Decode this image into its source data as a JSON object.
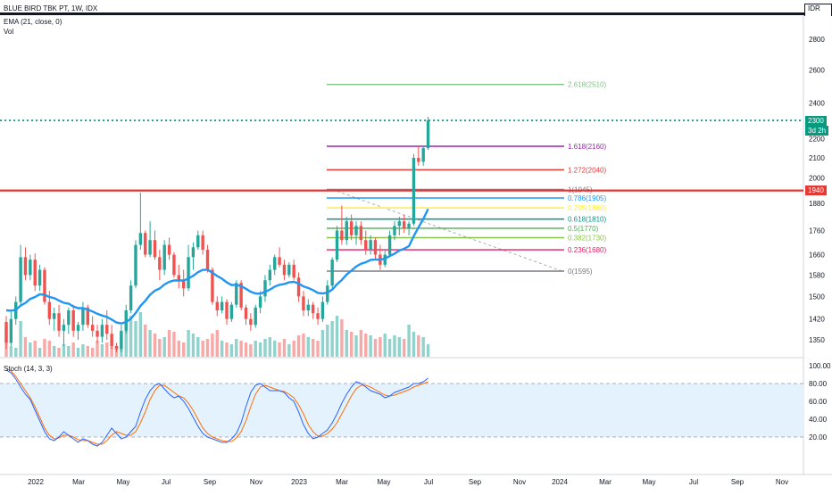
{
  "header": {
    "symbol_title": "BLUE BIRD TBK PT, 1W, IDX",
    "ema_label": "EMA (21, close, 0)",
    "vol_label": "Vol",
    "stoch_label": "Stoch (14, 3, 3)",
    "currency": "IDR"
  },
  "price_tags": {
    "last": "2300",
    "countdown": "3d 2h",
    "level": "1940"
  },
  "colors": {
    "up": "#26a69a",
    "down": "#ef5350",
    "ema": "#2196f3",
    "resistance": "#e53935",
    "last_price": "#089981",
    "stoch_k": "#2962ff",
    "stoch_d": "#ff6d00",
    "stoch_band": "#e3f2fd"
  },
  "chart_data": {
    "type": "candlestick",
    "price_axis": {
      "ticks": [
        "2800",
        "2600",
        "2400",
        "2300",
        "2200",
        "2100",
        "2000",
        "1880",
        "1760",
        "1660",
        "1580",
        "1500",
        "1420",
        "1350"
      ]
    },
    "stoch_axis": {
      "ticks": [
        "100.00",
        "80.00",
        "60.00",
        "40.00",
        "20.00"
      ],
      "upper_band": 80,
      "lower_band": 20
    },
    "time_axis": {
      "labels": [
        "2022",
        "Mar",
        "May",
        "Jul",
        "Sep",
        "Nov",
        "2023",
        "Mar",
        "May",
        "Jul",
        "Sep",
        "Nov",
        "2024",
        "Mar",
        "May",
        "Jul",
        "Sep",
        "Nov"
      ]
    },
    "fib_levels": [
      {
        "label": "2.618(2510)",
        "value": 2510,
        "color": "#81c784"
      },
      {
        "label": "1.618(2160)",
        "value": 2160,
        "color": "#9c27b0"
      },
      {
        "label": "1.272(2040)",
        "value": 2040,
        "color": "#e53935"
      },
      {
        "label": "1(1945)",
        "value": 1945,
        "color": "#787b86"
      },
      {
        "label": "0.786(1905)",
        "value": 1905,
        "color": "#2196f3"
      },
      {
        "label": "0.705(1860)",
        "value": 1860,
        "color": "#ffeb3b"
      },
      {
        "label": "0.618(1810)",
        "value": 1810,
        "color": "#009688"
      },
      {
        "label": "0.5(1770)",
        "value": 1770,
        "color": "#4caf50"
      },
      {
        "label": "0.382(1730)",
        "value": 1730,
        "color": "#8bc34a"
      },
      {
        "label": "0.236(1680)",
        "value": 1680,
        "color": "#e91e63"
      },
      {
        "label": "0(1595)",
        "value": 1595,
        "color": "#787b86"
      }
    ],
    "horizontal_lines": [
      {
        "value": 1940,
        "style": "solid",
        "color": "#e53935"
      },
      {
        "value": 2300,
        "style": "dotted",
        "color": "#089981"
      }
    ],
    "candles": [
      [
        1410,
        1430,
        1320,
        1340
      ],
      [
        1340,
        1445,
        1330,
        1420
      ],
      [
        1420,
        1500,
        1400,
        1480
      ],
      [
        1480,
        1700,
        1470,
        1650
      ],
      [
        1650,
        1690,
        1560,
        1580
      ],
      [
        1580,
        1660,
        1560,
        1640
      ],
      [
        1640,
        1665,
        1520,
        1540
      ],
      [
        1540,
        1620,
        1520,
        1600
      ],
      [
        1600,
        1610,
        1470,
        1480
      ],
      [
        1480,
        1520,
        1400,
        1420
      ],
      [
        1420,
        1460,
        1380,
        1440
      ],
      [
        1440,
        1470,
        1360,
        1380
      ],
      [
        1380,
        1420,
        1330,
        1400
      ],
      [
        1400,
        1460,
        1370,
        1450
      ],
      [
        1450,
        1470,
        1360,
        1380
      ],
      [
        1380,
        1410,
        1350,
        1400
      ],
      [
        1400,
        1480,
        1380,
        1460
      ],
      [
        1460,
        1470,
        1390,
        1400
      ],
      [
        1400,
        1430,
        1360,
        1380
      ],
      [
        1380,
        1400,
        1340,
        1360
      ],
      [
        1360,
        1420,
        1340,
        1400
      ],
      [
        1400,
        1450,
        1350,
        1370
      ],
      [
        1370,
        1400,
        1320,
        1330
      ],
      [
        1330,
        1340,
        1310,
        1320
      ],
      [
        1320,
        1400,
        1310,
        1380
      ],
      [
        1380,
        1470,
        1370,
        1450
      ],
      [
        1450,
        1560,
        1440,
        1540
      ],
      [
        1540,
        1720,
        1530,
        1700
      ],
      [
        1700,
        1930,
        1680,
        1750
      ],
      [
        1750,
        1760,
        1650,
        1660
      ],
      [
        1660,
        1800,
        1650,
        1720
      ],
      [
        1720,
        1760,
        1640,
        1650
      ],
      [
        1650,
        1680,
        1560,
        1600
      ],
      [
        1600,
        1720,
        1580,
        1700
      ],
      [
        1700,
        1730,
        1640,
        1660
      ],
      [
        1660,
        1670,
        1570,
        1580
      ],
      [
        1580,
        1620,
        1530,
        1560
      ],
      [
        1560,
        1600,
        1500,
        1530
      ],
      [
        1530,
        1700,
        1520,
        1650
      ],
      [
        1650,
        1710,
        1600,
        1690
      ],
      [
        1690,
        1760,
        1680,
        1740
      ],
      [
        1740,
        1760,
        1660,
        1680
      ],
      [
        1680,
        1700,
        1590,
        1600
      ],
      [
        1600,
        1610,
        1470,
        1480
      ],
      [
        1480,
        1500,
        1430,
        1450
      ],
      [
        1450,
        1500,
        1440,
        1480
      ],
      [
        1480,
        1490,
        1400,
        1420
      ],
      [
        1420,
        1480,
        1410,
        1470
      ],
      [
        1470,
        1560,
        1460,
        1550
      ],
      [
        1550,
        1560,
        1450,
        1460
      ],
      [
        1460,
        1470,
        1400,
        1420
      ],
      [
        1420,
        1440,
        1380,
        1400
      ],
      [
        1400,
        1470,
        1390,
        1460
      ],
      [
        1460,
        1520,
        1440,
        1500
      ],
      [
        1500,
        1580,
        1480,
        1560
      ],
      [
        1560,
        1620,
        1540,
        1600
      ],
      [
        1600,
        1660,
        1580,
        1650
      ],
      [
        1650,
        1690,
        1610,
        1620
      ],
      [
        1620,
        1640,
        1560,
        1580
      ],
      [
        1580,
        1630,
        1570,
        1620
      ],
      [
        1620,
        1640,
        1560,
        1570
      ],
      [
        1570,
        1590,
        1480,
        1500
      ],
      [
        1500,
        1520,
        1430,
        1450
      ],
      [
        1450,
        1490,
        1430,
        1470
      ],
      [
        1470,
        1480,
        1420,
        1440
      ],
      [
        1440,
        1460,
        1400,
        1420
      ],
      [
        1420,
        1500,
        1410,
        1480
      ],
      [
        1480,
        1560,
        1470,
        1540
      ],
      [
        1540,
        1650,
        1530,
        1640
      ],
      [
        1640,
        1780,
        1630,
        1760
      ],
      [
        1760,
        1870,
        1700,
        1720
      ],
      [
        1720,
        1820,
        1700,
        1800
      ],
      [
        1800,
        1830,
        1720,
        1740
      ],
      [
        1740,
        1800,
        1700,
        1780
      ],
      [
        1780,
        1800,
        1700,
        1720
      ],
      [
        1720,
        1760,
        1660,
        1680
      ],
      [
        1680,
        1740,
        1660,
        1720
      ],
      [
        1720,
        1730,
        1640,
        1660
      ],
      [
        1660,
        1700,
        1600,
        1620
      ],
      [
        1620,
        1680,
        1610,
        1660
      ],
      [
        1660,
        1760,
        1650,
        1740
      ],
      [
        1740,
        1800,
        1720,
        1780
      ],
      [
        1780,
        1820,
        1740,
        1800
      ],
      [
        1800,
        1830,
        1750,
        1770
      ],
      [
        1770,
        1800,
        1740,
        1790
      ],
      [
        1790,
        2120,
        1780,
        2100
      ],
      [
        2100,
        2160,
        2060,
        2080
      ],
      [
        2080,
        2160,
        2060,
        2150
      ],
      [
        2150,
        2320,
        2140,
        2300
      ]
    ],
    "ema": [
      1450,
      1449,
      1452,
      1467,
      1477,
      1491,
      1498,
      1508,
      1506,
      1498,
      1494,
      1485,
      1477,
      1474,
      1464,
      1458,
      1458,
      1453,
      1446,
      1438,
      1432,
      1427,
      1418,
      1408,
      1405,
      1409,
      1421,
      1441,
      1466,
      1484,
      1506,
      1521,
      1529,
      1544,
      1554,
      1559,
      1559,
      1559,
      1567,
      1577,
      1591,
      1600,
      1600,
      1589,
      1576,
      1566,
      1552,
      1542,
      1543,
      1538,
      1528,
      1517,
      1511,
      1510,
      1517,
      1525,
      1536,
      1543,
      1546,
      1552,
      1554,
      1548,
      1537,
      1531,
      1523,
      1513,
      1511,
      1514,
      1525,
      1545,
      1561,
      1582,
      1597,
      1613,
      1624,
      1630,
      1639,
      1641,
      1640,
      1644,
      1655,
      1664,
      1677,
      1684,
      1695,
      1736,
      1774,
      1811,
      1855
    ],
    "volume": [
      34,
      12,
      10,
      40,
      22,
      16,
      18,
      10,
      20,
      18,
      12,
      10,
      14,
      12,
      16,
      10,
      14,
      12,
      10,
      18,
      14,
      16,
      20,
      12,
      24,
      30,
      46,
      40,
      50,
      36,
      30,
      26,
      20,
      22,
      30,
      28,
      18,
      16,
      30,
      26,
      22,
      18,
      20,
      26,
      30,
      18,
      16,
      14,
      20,
      18,
      16,
      14,
      18,
      16,
      20,
      22,
      18,
      16,
      20,
      14,
      18,
      24,
      26,
      22,
      20,
      18,
      30,
      36,
      40,
      46,
      42,
      30,
      28,
      24,
      30,
      26,
      24,
      20,
      22,
      26,
      20,
      24,
      22,
      20,
      36,
      28,
      24,
      22,
      14
    ],
    "stoch_k": [
      95,
      92,
      85,
      76,
      68,
      62,
      50,
      38,
      26,
      18,
      16,
      20,
      26,
      22,
      18,
      14,
      18,
      16,
      12,
      10,
      14,
      22,
      30,
      24,
      18,
      20,
      26,
      32,
      48,
      62,
      72,
      78,
      80,
      74,
      68,
      64,
      66,
      60,
      52,
      42,
      32,
      24,
      20,
      18,
      16,
      14,
      14,
      18,
      24,
      36,
      54,
      70,
      78,
      80,
      76,
      72,
      72,
      72,
      70,
      64,
      60,
      48,
      34,
      24,
      18,
      20,
      24,
      28,
      36,
      46,
      58,
      68,
      76,
      82,
      80,
      76,
      72,
      70,
      68,
      64,
      66,
      70,
      72,
      74,
      76,
      80,
      80,
      82,
      86
    ],
    "stoch_d": [
      97,
      94,
      88,
      80,
      72,
      64,
      54,
      42,
      30,
      22,
      18,
      19,
      22,
      22,
      20,
      17,
      16,
      16,
      14,
      12,
      12,
      16,
      22,
      26,
      24,
      22,
      22,
      26,
      36,
      48,
      62,
      72,
      78,
      78,
      74,
      70,
      66,
      64,
      58,
      50,
      40,
      30,
      24,
      20,
      18,
      16,
      15,
      15,
      19,
      26,
      38,
      54,
      68,
      76,
      78,
      76,
      74,
      72,
      71,
      68,
      64,
      56,
      46,
      34,
      26,
      21,
      21,
      24,
      29,
      36,
      46,
      56,
      66,
      74,
      78,
      78,
      76,
      73,
      70,
      67,
      66,
      67,
      69,
      71,
      73,
      76,
      78,
      80,
      82
    ]
  }
}
